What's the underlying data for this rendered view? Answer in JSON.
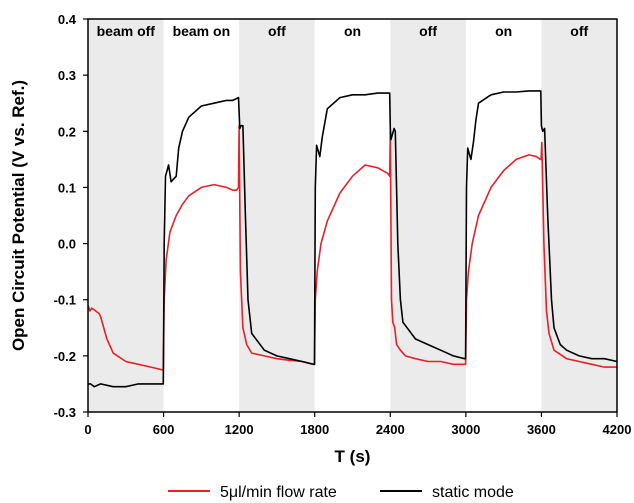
{
  "chart_data": {
    "type": "line",
    "xlabel": "T (s)",
    "ylabel": "Open Circuit Potential (V vs. Ref.)",
    "xlim": [
      0,
      4200
    ],
    "ylim": [
      -0.3,
      0.4
    ],
    "xticks": [
      0,
      600,
      1200,
      1800,
      2400,
      3000,
      3600,
      4200
    ],
    "xtick_labels": [
      "0",
      "600",
      "1200",
      "1800",
      "2400",
      "3000",
      "3600",
      "4200"
    ],
    "yticks": [
      -0.3,
      -0.2,
      -0.1,
      0.0,
      0.1,
      0.2,
      0.3,
      0.4
    ],
    "ytick_labels": [
      "-0.3",
      "-0.2",
      "-0.1",
      "0.0",
      "0.1",
      "0.2",
      "0.3",
      "0.4"
    ],
    "grid": false,
    "legend_position": "bottom",
    "regions": [
      {
        "label": "beam off",
        "x0": 0,
        "x1": 600,
        "shaded": true
      },
      {
        "label": "beam on",
        "x0": 600,
        "x1": 1200,
        "shaded": false
      },
      {
        "label": "off",
        "x0": 1200,
        "x1": 1800,
        "shaded": true
      },
      {
        "label": "on",
        "x0": 1800,
        "x1": 2400,
        "shaded": false
      },
      {
        "label": "off",
        "x0": 2400,
        "x1": 3000,
        "shaded": true
      },
      {
        "label": "on",
        "x0": 3000,
        "x1": 3600,
        "shaded": false
      },
      {
        "label": "off",
        "x0": 3600,
        "x1": 4200,
        "shaded": true
      }
    ],
    "colors": {
      "shade": "#ebebeb",
      "red": "#e8202a",
      "black": "#000000"
    },
    "series": [
      {
        "name": "5μl/min flow rate",
        "color": "#e8202a",
        "x": [
          0,
          15,
          30,
          60,
          90,
          100,
          150,
          200,
          300,
          400,
          500,
          590,
          598,
          605,
          620,
          650,
          700,
          750,
          800,
          900,
          1000,
          1100,
          1150,
          1180,
          1195,
          1200,
          1210,
          1230,
          1260,
          1300,
          1400,
          1500,
          1600,
          1700,
          1790,
          1798,
          1805,
          1820,
          1850,
          1900,
          2000,
          2100,
          2200,
          2300,
          2380,
          2395,
          2400,
          2410,
          2420,
          2435,
          2450,
          2480,
          2520,
          2600,
          2700,
          2800,
          2900,
          2990,
          2998,
          3005,
          3020,
          3050,
          3100,
          3200,
          3300,
          3400,
          3500,
          3560,
          3590,
          3597,
          3603,
          3620,
          3640,
          3660,
          3700,
          3800,
          3900,
          4000,
          4100,
          4200
        ],
        "y": [
          -0.11,
          -0.12,
          -0.115,
          -0.12,
          -0.125,
          -0.13,
          -0.17,
          -0.195,
          -0.21,
          -0.215,
          -0.22,
          -0.225,
          -0.225,
          -0.1,
          -0.03,
          0.02,
          0.05,
          0.07,
          0.085,
          0.1,
          0.105,
          0.1,
          0.095,
          0.095,
          0.1,
          0.21,
          -0.05,
          -0.15,
          -0.18,
          -0.195,
          -0.2,
          -0.205,
          -0.208,
          -0.21,
          -0.215,
          -0.215,
          -0.1,
          -0.05,
          0.0,
          0.04,
          0.09,
          0.12,
          0.14,
          0.135,
          0.125,
          0.12,
          0.2,
          -0.1,
          -0.14,
          -0.15,
          -0.18,
          -0.19,
          -0.2,
          -0.205,
          -0.21,
          -0.21,
          -0.215,
          -0.215,
          -0.215,
          -0.1,
          -0.05,
          0.0,
          0.05,
          0.1,
          0.13,
          0.15,
          0.158,
          0.155,
          0.15,
          0.15,
          0.18,
          0.0,
          -0.12,
          -0.16,
          -0.19,
          -0.205,
          -0.21,
          -0.215,
          -0.22,
          -0.22
        ]
      },
      {
        "name": "static mode",
        "color": "#000000",
        "x": [
          0,
          20,
          50,
          100,
          200,
          300,
          400,
          500,
          590,
          598,
          605,
          615,
          640,
          660,
          700,
          720,
          750,
          800,
          900,
          1000,
          1100,
          1150,
          1195,
          1205,
          1215,
          1230,
          1250,
          1270,
          1300,
          1400,
          1500,
          1600,
          1700,
          1790,
          1798,
          1805,
          1815,
          1840,
          1860,
          1880,
          1900,
          2000,
          2100,
          2200,
          2300,
          2395,
          2400,
          2405,
          2430,
          2440,
          2460,
          2480,
          2500,
          2600,
          2700,
          2800,
          2900,
          2990,
          2998,
          3005,
          3015,
          3040,
          3060,
          3080,
          3100,
          3200,
          3300,
          3400,
          3500,
          3595,
          3600,
          3610,
          3625,
          3650,
          3680,
          3700,
          3750,
          3800,
          3900,
          4000,
          4100,
          4200
        ],
        "y": [
          -0.25,
          -0.25,
          -0.255,
          -0.25,
          -0.255,
          -0.255,
          -0.25,
          -0.25,
          -0.25,
          -0.25,
          0.0,
          0.12,
          0.14,
          0.11,
          0.12,
          0.17,
          0.2,
          0.225,
          0.245,
          0.25,
          0.255,
          0.255,
          0.26,
          0.205,
          0.21,
          0.21,
          0.05,
          -0.1,
          -0.16,
          -0.19,
          -0.2,
          -0.205,
          -0.21,
          -0.215,
          -0.215,
          0.1,
          0.175,
          0.155,
          0.19,
          0.215,
          0.24,
          0.26,
          0.265,
          0.265,
          0.268,
          0.268,
          0.205,
          0.185,
          0.205,
          0.2,
          0.0,
          -0.1,
          -0.14,
          -0.17,
          -0.18,
          -0.19,
          -0.2,
          -0.205,
          -0.205,
          0.1,
          0.17,
          0.15,
          0.18,
          0.22,
          0.25,
          0.265,
          0.27,
          0.27,
          0.272,
          0.272,
          0.21,
          0.2,
          0.205,
          0.05,
          -0.1,
          -0.15,
          -0.18,
          -0.19,
          -0.2,
          -0.205,
          -0.205,
          -0.21
        ]
      }
    ],
    "legend": [
      {
        "label": "5μl/min flow rate",
        "color": "#e8202a"
      },
      {
        "label": "static mode",
        "color": "#000000"
      }
    ]
  }
}
